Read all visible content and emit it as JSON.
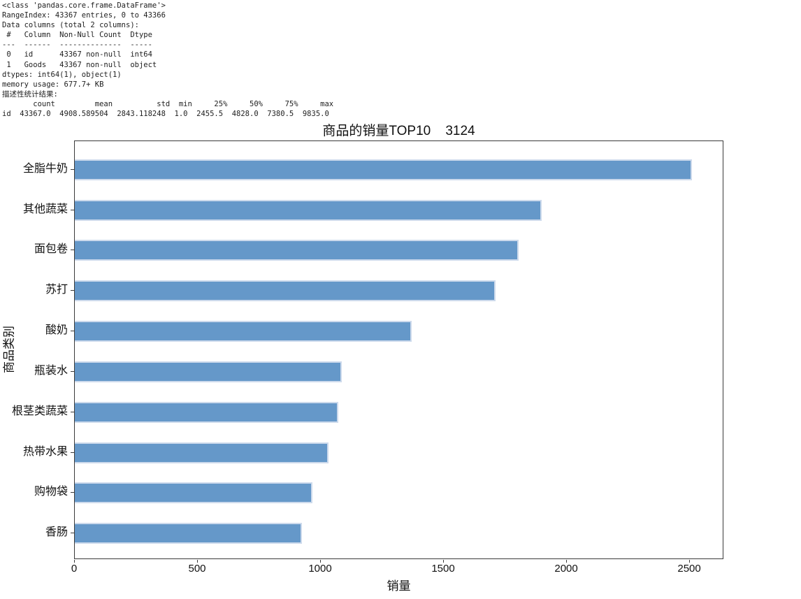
{
  "console": {
    "lines": [
      "<class 'pandas.core.frame.DataFrame'>",
      "RangeIndex: 43367 entries, 0 to 43366",
      "Data columns (total 2 columns):",
      " #   Column  Non-Null Count  Dtype ",
      "---  ------  --------------  ----- ",
      " 0   id      43367 non-null  int64 ",
      " 1   Goods   43367 non-null  object",
      "dtypes: int64(1), object(1)",
      "memory usage: 677.7+ KB",
      "描述性统计结果:",
      "       count         mean          std  min     25%     50%     75%     max",
      "id  43367.0  4908.589504  2843.118248  1.0  2455.5  4828.0  7380.5  9835.0"
    ]
  },
  "chart_data": {
    "type": "bar",
    "orientation": "horizontal",
    "title": "商品的销量TOP10    3124",
    "xlabel": "销量",
    "ylabel": "商品类别",
    "categories": [
      "全脂牛奶",
      "其他蔬菜",
      "面包卷",
      "苏打",
      "酸奶",
      "瓶装水",
      "根茎类蔬菜",
      "热带水果",
      "购物袋",
      "香肠"
    ],
    "values": [
      2513,
      1903,
      1809,
      1715,
      1372,
      1087,
      1072,
      1032,
      969,
      924
    ],
    "xticks": [
      0,
      500,
      1000,
      1500,
      2000,
      2500
    ],
    "xlim": [
      0,
      2639
    ],
    "grid": false,
    "legend": false,
    "bar_color": "#6598c9",
    "bar_edge_color": "#cddaec",
    "axis_color": "#3a3a3a"
  }
}
